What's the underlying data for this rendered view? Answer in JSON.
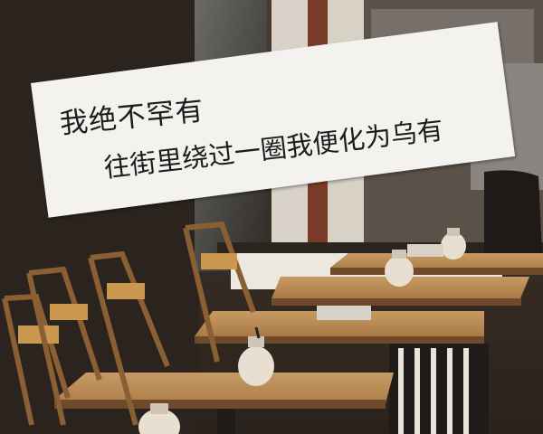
{
  "note": {
    "line1": "我绝不罕有",
    "line2": "往街里绕过一圈我便化为乌有"
  }
}
